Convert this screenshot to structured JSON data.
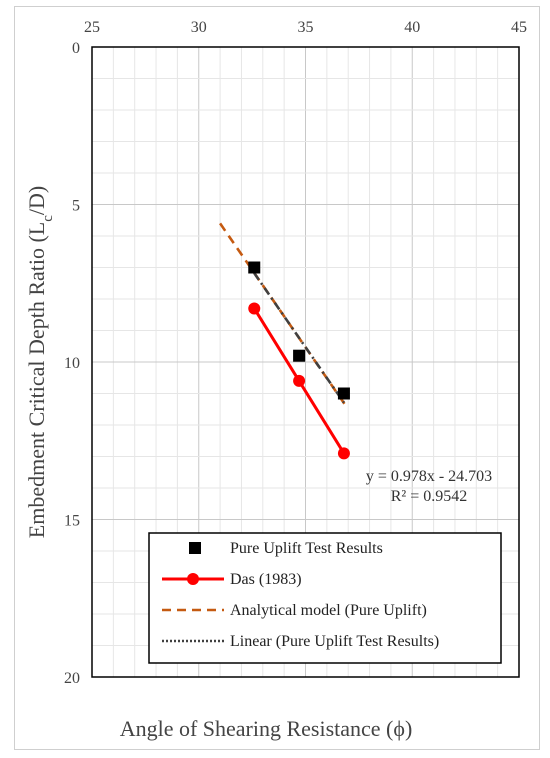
{
  "chart_data": {
    "type": "scatter",
    "xlabel": "Angle of Shearing Resistance (ϕ)",
    "ylabel_main": "Embedment Critical Depth Ratio (L",
    "ylabel_sub": "c",
    "ylabel_end": "/D)",
    "xlim": [
      25,
      45
    ],
    "ylim": [
      0,
      20
    ],
    "y_inverted": true,
    "x_axis_position": "top",
    "x_ticks": [
      25,
      30,
      35,
      40,
      45
    ],
    "y_ticks": [
      0,
      5,
      10,
      15,
      20
    ],
    "grid": true,
    "series": [
      {
        "name": "Pure Uplift Test Results",
        "kind": "markers",
        "marker": "square",
        "color": "#000000",
        "points": [
          [
            32.6,
            7.0
          ],
          [
            34.7,
            9.8
          ],
          [
            36.8,
            11.0
          ]
        ]
      },
      {
        "name": "Das (1983)",
        "kind": "line-markers",
        "marker": "circle",
        "color": "#ff0000",
        "points": [
          [
            32.6,
            8.3
          ],
          [
            34.7,
            10.6
          ],
          [
            36.8,
            12.9
          ]
        ]
      },
      {
        "name": "Analytical model (Pure Uplift)",
        "kind": "dashed-line",
        "color": "#c55a11",
        "points": [
          [
            31.0,
            5.6
          ],
          [
            36.9,
            11.4
          ]
        ]
      },
      {
        "name": "Linear (Pure Uplift Test Results)",
        "kind": "dotted-line",
        "color": "#404040",
        "points": [
          [
            32.6,
            7.18
          ],
          [
            36.8,
            11.29
          ]
        ]
      }
    ],
    "annotations": [
      {
        "text": "y = 0.978x - 24.703"
      },
      {
        "text": "R² = 0.9542"
      }
    ],
    "legend_position": "bottom-right"
  }
}
